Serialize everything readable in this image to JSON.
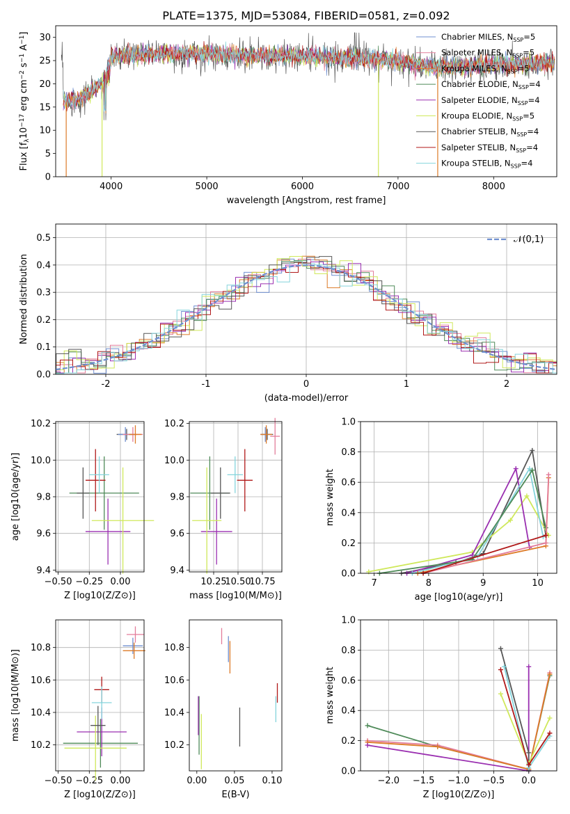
{
  "figure_title": "PLATE=1375, MJD=53084, FIBERID=0581, z=0.092",
  "series_names": [
    "Chabrier MILES, N_SSP=5",
    "Salpeter MILES, N_SSP=5",
    "Kroupa MILES, N_SSP=5",
    "Chabrier ELODIE, N_SSP=4",
    "Salpeter ELODIE, N_SSP=4",
    "Kroupa ELODIE, N_SSP=5",
    "Chabrier STELIB, N_SSP=4",
    "Salpeter STELIB, N_SSP=4",
    "Kroupa STELIB, N_SSP=4"
  ],
  "series_colors": [
    "#6f8fd0",
    "#e37c9a",
    "#dd7b28",
    "#4e8a58",
    "#9a2fb0",
    "#cfe85a",
    "#555555",
    "#b01818",
    "#84d4dc"
  ],
  "chart_data": [
    {
      "id": "spectrum",
      "type": "line",
      "xlabel": "wavelength [Angstrom, rest frame]",
      "ylabel": "Flux [f_λ 10^-17 erg cm^-2 s^-1 A^-1]",
      "xlim": [
        3420,
        8660
      ],
      "ylim": [
        0,
        32.5
      ],
      "xticks": [
        4000,
        5000,
        6000,
        7000,
        8000
      ],
      "yticks": [
        0,
        5,
        10,
        15,
        20,
        25,
        30
      ],
      "grid": false,
      "legend": "right",
      "continuum": [
        [
          3500,
          16
        ],
        [
          3700,
          17
        ],
        [
          3900,
          20
        ],
        [
          4000,
          26
        ],
        [
          4500,
          26.5
        ],
        [
          5000,
          26.5
        ],
        [
          5500,
          26
        ],
        [
          6000,
          26
        ],
        [
          6500,
          25.5
        ],
        [
          7000,
          25
        ],
        [
          7200,
          24
        ],
        [
          7500,
          23.5
        ],
        [
          8000,
          24
        ],
        [
          8600,
          24.5
        ]
      ]
    },
    {
      "id": "residuals",
      "type": "line",
      "xlabel": "(data-model)/error",
      "ylabel": "Normed distribution",
      "xlim": [
        -2.5,
        2.5
      ],
      "ylim": [
        0,
        0.55
      ],
      "xticks": [
        -2,
        -1,
        0,
        1,
        2
      ],
      "yticks": [
        0.0,
        0.1,
        0.2,
        0.3,
        0.4,
        0.5
      ],
      "grid": true,
      "legend": "top-right",
      "legend_label": "𝒩(0,1)",
      "bin_width": 0.125,
      "reference": "normal(0,1)"
    },
    {
      "id": "age_vs_Z",
      "type": "scatter",
      "xlabel": "Z [log10(Z/Z⊙)]",
      "ylabel": "age [log10(age/yr)]",
      "xlim": [
        -0.52,
        0.19
      ],
      "ylim": [
        9.39,
        10.21
      ],
      "xticks": [
        -0.5,
        -0.25,
        0.0
      ],
      "yticks": [
        9.4,
        9.6,
        9.8,
        10.0,
        10.2
      ],
      "grid": true,
      "points": [
        [
          0.05,
          10.14,
          0.08,
          0.03,
          6
        ],
        [
          0.04,
          10.14,
          0.06,
          0.04,
          0
        ],
        [
          0.1,
          10.14,
          0.08,
          0.04,
          1
        ],
        [
          0.12,
          10.14,
          0.05,
          0.05,
          2
        ],
        [
          -0.13,
          9.82,
          0.28,
          0.2,
          3
        ],
        [
          -0.1,
          9.61,
          0.18,
          0.18,
          4
        ],
        [
          0.02,
          9.67,
          0.25,
          0.29,
          5
        ],
        [
          -0.3,
          9.82,
          0.05,
          0.14,
          6
        ],
        [
          -0.2,
          9.89,
          0.08,
          0.17,
          7
        ],
        [
          -0.17,
          9.92,
          0.08,
          0.1,
          8
        ]
      ]
    },
    {
      "id": "age_vs_mass",
      "type": "scatter",
      "xlabel": "mass [log10(M/M⊙)]",
      "ylabel": "",
      "xlim": [
        10.0,
        10.95
      ],
      "ylim": [
        9.39,
        10.21
      ],
      "xticks": [
        10.25,
        10.5,
        10.75
      ],
      "yticks": [
        9.4,
        9.6,
        9.8,
        10.0,
        10.2
      ],
      "grid": true,
      "points": [
        [
          10.8,
          10.14,
          0.06,
          0.03,
          6
        ],
        [
          10.78,
          10.14,
          0.05,
          0.04,
          0
        ],
        [
          10.88,
          10.13,
          0.05,
          0.1,
          1
        ],
        [
          10.79,
          10.14,
          0.06,
          0.05,
          2
        ],
        [
          10.21,
          9.82,
          0.2,
          0.2,
          3
        ],
        [
          10.28,
          9.61,
          0.16,
          0.18,
          4
        ],
        [
          10.18,
          9.67,
          0.15,
          0.29,
          5
        ],
        [
          10.32,
          9.82,
          0.1,
          0.14,
          6
        ],
        [
          10.57,
          9.89,
          0.08,
          0.17,
          7
        ],
        [
          10.47,
          9.92,
          0.08,
          0.1,
          8
        ]
      ]
    },
    {
      "id": "weights_vs_age",
      "type": "line",
      "xlabel": "age [log10(age/yr)]",
      "ylabel": "mass weight",
      "xlim": [
        6.75,
        10.35
      ],
      "ylim": [
        0,
        1
      ],
      "xticks": [
        7,
        8,
        9,
        10
      ],
      "yticks": [
        0.0,
        0.2,
        0.4,
        0.6,
        0.8,
        1.0
      ],
      "grid": true,
      "series": [
        {
          "color": 6,
          "points": [
            [
              7.5,
              0
            ],
            [
              8.5,
              0.07
            ],
            [
              9.0,
              0.13
            ],
            [
              9.9,
              0.81
            ],
            [
              10.15,
              0.25
            ]
          ]
        },
        {
          "color": 5,
          "points": [
            [
              6.9,
              0.01
            ],
            [
              8.8,
              0.14
            ],
            [
              9.5,
              0.35
            ],
            [
              9.8,
              0.51
            ],
            [
              10.2,
              0.25
            ]
          ]
        },
        {
          "color": 4,
          "points": [
            [
              7.6,
              0
            ],
            [
              8.8,
              0.12
            ],
            [
              9.6,
              0.69
            ],
            [
              9.85,
              0.17
            ]
          ]
        },
        {
          "color": 8,
          "points": [
            [
              7.7,
              0
            ],
            [
              8.9,
              0.11
            ],
            [
              9.85,
              0.69
            ],
            [
              10.1,
              0.24
            ]
          ]
        },
        {
          "color": 3,
          "points": [
            [
              7.1,
              0
            ],
            [
              8.8,
              0.09
            ],
            [
              9.9,
              0.68
            ],
            [
              10.15,
              0.3
            ]
          ]
        },
        {
          "color": 2,
          "points": [
            [
              7.8,
              0
            ],
            [
              10.15,
              0.18
            ],
            [
              10.2,
              0.63
            ]
          ]
        },
        {
          "color": 1,
          "points": [
            [
              7.9,
              0
            ],
            [
              10.15,
              0.2
            ],
            [
              10.2,
              0.65
            ]
          ]
        },
        {
          "color": 7,
          "points": [
            [
              7.9,
              0
            ],
            [
              10.15,
              0.25
            ]
          ]
        }
      ]
    },
    {
      "id": "mass_vs_Z",
      "type": "scatter",
      "xlabel": "Z [log10(Z/Z⊙)]",
      "ylabel": "mass [log10(M/M⊙)]",
      "xlim": [
        -0.52,
        0.19
      ],
      "ylim": [
        10.04,
        10.97
      ],
      "xticks": [
        -0.5,
        -0.25,
        0.0
      ],
      "yticks": [
        10.2,
        10.4,
        10.6,
        10.8
      ],
      "grid": true,
      "points": [
        [
          0.12,
          10.88,
          0.07,
          0.05,
          1
        ],
        [
          0.1,
          10.81,
          0.08,
          0.05,
          0
        ],
        [
          0.11,
          10.78,
          0.09,
          0.05,
          2
        ],
        [
          -0.16,
          10.21,
          0.3,
          0.15,
          3
        ],
        [
          -0.15,
          10.28,
          0.2,
          0.15,
          4
        ],
        [
          -0.2,
          10.18,
          0.25,
          0.2,
          5
        ],
        [
          -0.18,
          10.32,
          0.06,
          0.12,
          6
        ],
        [
          -0.15,
          10.54,
          0.06,
          0.08,
          7
        ],
        [
          -0.15,
          10.46,
          0.08,
          0.1,
          8
        ]
      ]
    },
    {
      "id": "mass_vs_EBV",
      "type": "scatter",
      "xlabel": "E(B-V)",
      "ylabel": "",
      "xlim": [
        -0.01,
        0.113
      ],
      "ylim": [
        10.04,
        10.97
      ],
      "xticks": [
        0.0,
        0.05,
        0.1
      ],
      "yticks": [
        10.2,
        10.4,
        10.6,
        10.8
      ],
      "grid": false,
      "points": [
        [
          0.033,
          10.87,
          0,
          0.05,
          1
        ],
        [
          0.042,
          10.79,
          0,
          0.08,
          0
        ],
        [
          0.044,
          10.74,
          0,
          0.1,
          2
        ],
        [
          0.003,
          10.32,
          0,
          0.18,
          3
        ],
        [
          0.002,
          10.38,
          0,
          0.12,
          4
        ],
        [
          0.006,
          10.22,
          0,
          0.17,
          5
        ],
        [
          0.057,
          10.31,
          0,
          0.12,
          6
        ],
        [
          0.107,
          10.52,
          0,
          0.06,
          7
        ],
        [
          0.105,
          10.42,
          0,
          0.08,
          8
        ]
      ]
    },
    {
      "id": "weights_vs_Z",
      "type": "line",
      "xlabel": "Z [log10(Z/Z⊙)]",
      "ylabel": "mass weight",
      "xlim": [
        -2.4,
        0.4
      ],
      "ylim": [
        0,
        1
      ],
      "xticks": [
        -2.0,
        -1.5,
        -1.0,
        -0.5,
        0.0
      ],
      "yticks": [
        0.0,
        0.2,
        0.4,
        0.6,
        0.8,
        1.0
      ],
      "grid": true,
      "series": [
        {
          "color": 3,
          "points": [
            [
              -2.3,
              0.3
            ],
            [
              -1.3,
              0.16
            ],
            [
              0,
              0.01
            ],
            [
              0.3,
              0.63
            ]
          ]
        },
        {
          "color": 1,
          "points": [
            [
              -2.3,
              0.2
            ],
            [
              -1.3,
              0.17
            ],
            [
              0,
              0.01
            ],
            [
              0.3,
              0.65
            ]
          ]
        },
        {
          "color": 2,
          "points": [
            [
              -2.3,
              0.19
            ],
            [
              -1.3,
              0.16
            ],
            [
              0,
              0.01
            ],
            [
              0.3,
              0.64
            ]
          ]
        },
        {
          "color": 4,
          "points": [
            [
              -2.3,
              0.17
            ],
            [
              0,
              0.0
            ],
            [
              0,
              0.69
            ],
            [
              0,
              0.0
            ]
          ]
        },
        {
          "color": 6,
          "points": [
            [
              -0.4,
              0.81
            ],
            [
              0,
              0.12
            ],
            [
              0,
              0.0
            ]
          ]
        },
        {
          "color": 5,
          "points": [
            [
              -0.4,
              0.51
            ],
            [
              0,
              0.05
            ],
            [
              0.3,
              0.35
            ]
          ]
        },
        {
          "color": 8,
          "points": [
            [
              -0.35,
              0.69
            ],
            [
              0,
              0.02
            ],
            [
              0.3,
              0.23
            ]
          ]
        },
        {
          "color": 7,
          "points": [
            [
              -0.4,
              0.67
            ],
            [
              0,
              0.04
            ],
            [
              0.3,
              0.25
            ]
          ]
        }
      ]
    }
  ]
}
